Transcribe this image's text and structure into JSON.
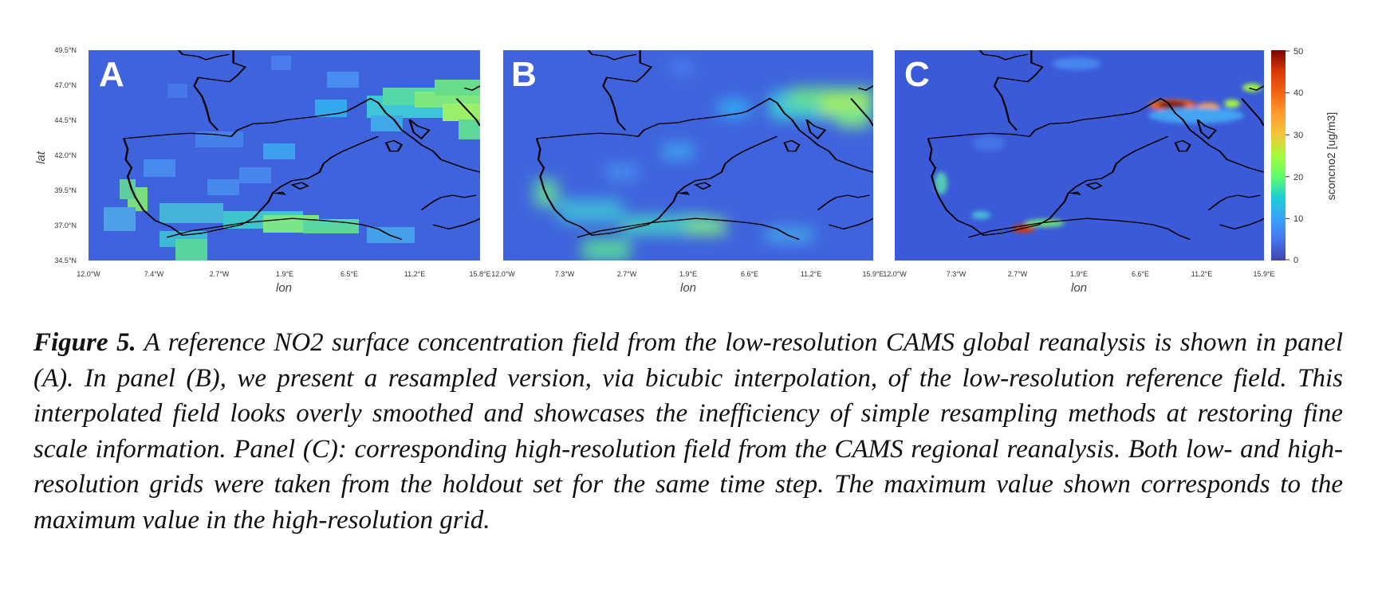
{
  "figure": {
    "ylabel": "lat",
    "xlabel": "lon",
    "yticks": [
      "49.5°N",
      "47.0°N",
      "44.5°N",
      "42.0°N",
      "39.5°N",
      "37.0°N",
      "34.5°N"
    ],
    "panels": [
      {
        "letter": "A",
        "xticks": [
          "12.0°W",
          "7.4°W",
          "2.7°W",
          "1.9°E",
          "6.5°E",
          "11.2°E",
          "15.8°E"
        ]
      },
      {
        "letter": "B",
        "xticks": [
          "12.0°W",
          "7.3°W",
          "2.7°W",
          "1.9°E",
          "6.6°E",
          "11.2°E",
          "15.9°E"
        ]
      },
      {
        "letter": "C",
        "xticks": [
          "12.0°W",
          "7.3°W",
          "2.7°W",
          "1.9°E",
          "6.6°E",
          "11.2°E",
          "15.9°E"
        ]
      }
    ],
    "colorbar": {
      "label": "sconcno2 [ug/m3]",
      "ticks": [
        "50",
        "40",
        "30",
        "20",
        "10",
        "0"
      ],
      "range": [
        0,
        50
      ],
      "colormap": [
        "#30123b",
        "#4145ab",
        "#4675ed",
        "#39a2fc",
        "#1bcfd4",
        "#24eca6",
        "#61fc6c",
        "#a4fc3b",
        "#d1e834",
        "#f3c63a",
        "#fe9b2d",
        "#f36315",
        "#d93806",
        "#b11901",
        "#7a0402"
      ]
    }
  },
  "caption": {
    "label": "Figure 5.",
    "text": "A reference NO2 surface concentration field from the low-resolution CAMS global reanalysis is shown in panel (A). In panel (B), we present a resampled version, via bicubic interpolation, of the low-resolution reference field. This interpolated field looks overly smoothed and showcases the inefficiency of simple resampling methods at restoring fine scale information. Panel (C): corresponding high-resolution field from the CAMS regional reanalysis. Both low- and high-resolution grids were taken from the holdout set for the same time step. The maximum value shown corresponds to the maximum value in the high-resolution grid."
  }
}
